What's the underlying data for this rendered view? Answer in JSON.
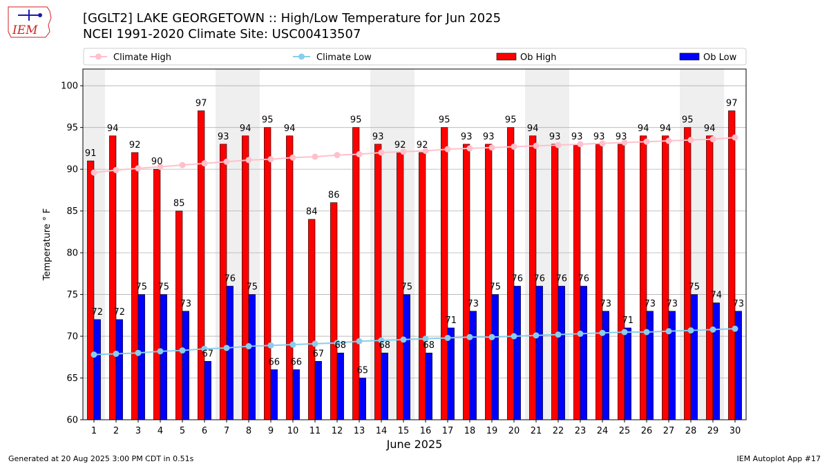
{
  "header": {
    "logo_text": "IEM",
    "title_line1": "[GGLT2] LAKE GEORGETOWN :: High/Low Temperature for Jun 2025",
    "title_line2": "NCEI 1991-2020 Climate Site: USC00413507"
  },
  "footer": {
    "left": "Generated at 20 Aug 2025 3:00 PM CDT in 0.51s",
    "right": "IEM Autoplot App #17"
  },
  "colors": {
    "ob_high": "#ff0000",
    "ob_low": "#0000ff",
    "climate_high": "#ffc0cb",
    "climate_low": "#87ceeb",
    "weekend_band": "#efefef",
    "grid": "#b0b0b0",
    "logo_red": "#cc2222",
    "logo_blue": "#1a1aa8"
  },
  "chart_data": {
    "type": "bar",
    "xlabel": "June 2025",
    "ylabel": "Temperature ° F",
    "ylim": [
      60,
      102
    ],
    "yticks": [
      60,
      65,
      70,
      75,
      80,
      85,
      90,
      95,
      100
    ],
    "grid": true,
    "legend_position": "top",
    "categories": [
      "1",
      "2",
      "3",
      "4",
      "5",
      "6",
      "7",
      "8",
      "9",
      "10",
      "11",
      "12",
      "13",
      "14",
      "15",
      "16",
      "17",
      "18",
      "19",
      "20",
      "21",
      "22",
      "23",
      "24",
      "25",
      "26",
      "27",
      "28",
      "29",
      "30"
    ],
    "shaded_days": [
      1,
      7,
      8,
      14,
      15,
      21,
      22,
      28,
      29
    ],
    "series": [
      {
        "name": "Climate High",
        "kind": "line",
        "values": [
          89.6,
          89.9,
          90.1,
          90.3,
          90.5,
          90.7,
          90.9,
          91.1,
          91.2,
          91.4,
          91.5,
          91.7,
          91.8,
          92.0,
          92.1,
          92.2,
          92.4,
          92.5,
          92.6,
          92.7,
          92.8,
          92.9,
          93.0,
          93.1,
          93.2,
          93.3,
          93.4,
          93.5,
          93.6,
          93.8
        ]
      },
      {
        "name": "Climate Low",
        "kind": "line",
        "values": [
          67.8,
          67.9,
          68.0,
          68.2,
          68.3,
          68.5,
          68.6,
          68.8,
          68.9,
          69.0,
          69.1,
          69.2,
          69.4,
          69.5,
          69.6,
          69.7,
          69.8,
          69.9,
          69.9,
          70.0,
          70.1,
          70.2,
          70.3,
          70.4,
          70.5,
          70.5,
          70.6,
          70.7,
          70.8,
          70.9
        ]
      },
      {
        "name": "Ob High",
        "kind": "bar",
        "values": [
          91,
          94,
          92,
          90,
          85,
          97,
          93,
          94,
          95,
          94,
          84,
          86,
          95,
          93,
          92,
          92,
          95,
          93,
          93,
          95,
          94,
          93,
          93,
          93,
          93,
          94,
          94,
          95,
          94,
          97
        ]
      },
      {
        "name": "Ob Low",
        "kind": "bar",
        "values": [
          72,
          72,
          75,
          75,
          73,
          67,
          76,
          75,
          66,
          66,
          67,
          68,
          65,
          68,
          75,
          68,
          71,
          73,
          75,
          76,
          76,
          76,
          76,
          73,
          71,
          73,
          73,
          75,
          74,
          73
        ]
      }
    ]
  }
}
